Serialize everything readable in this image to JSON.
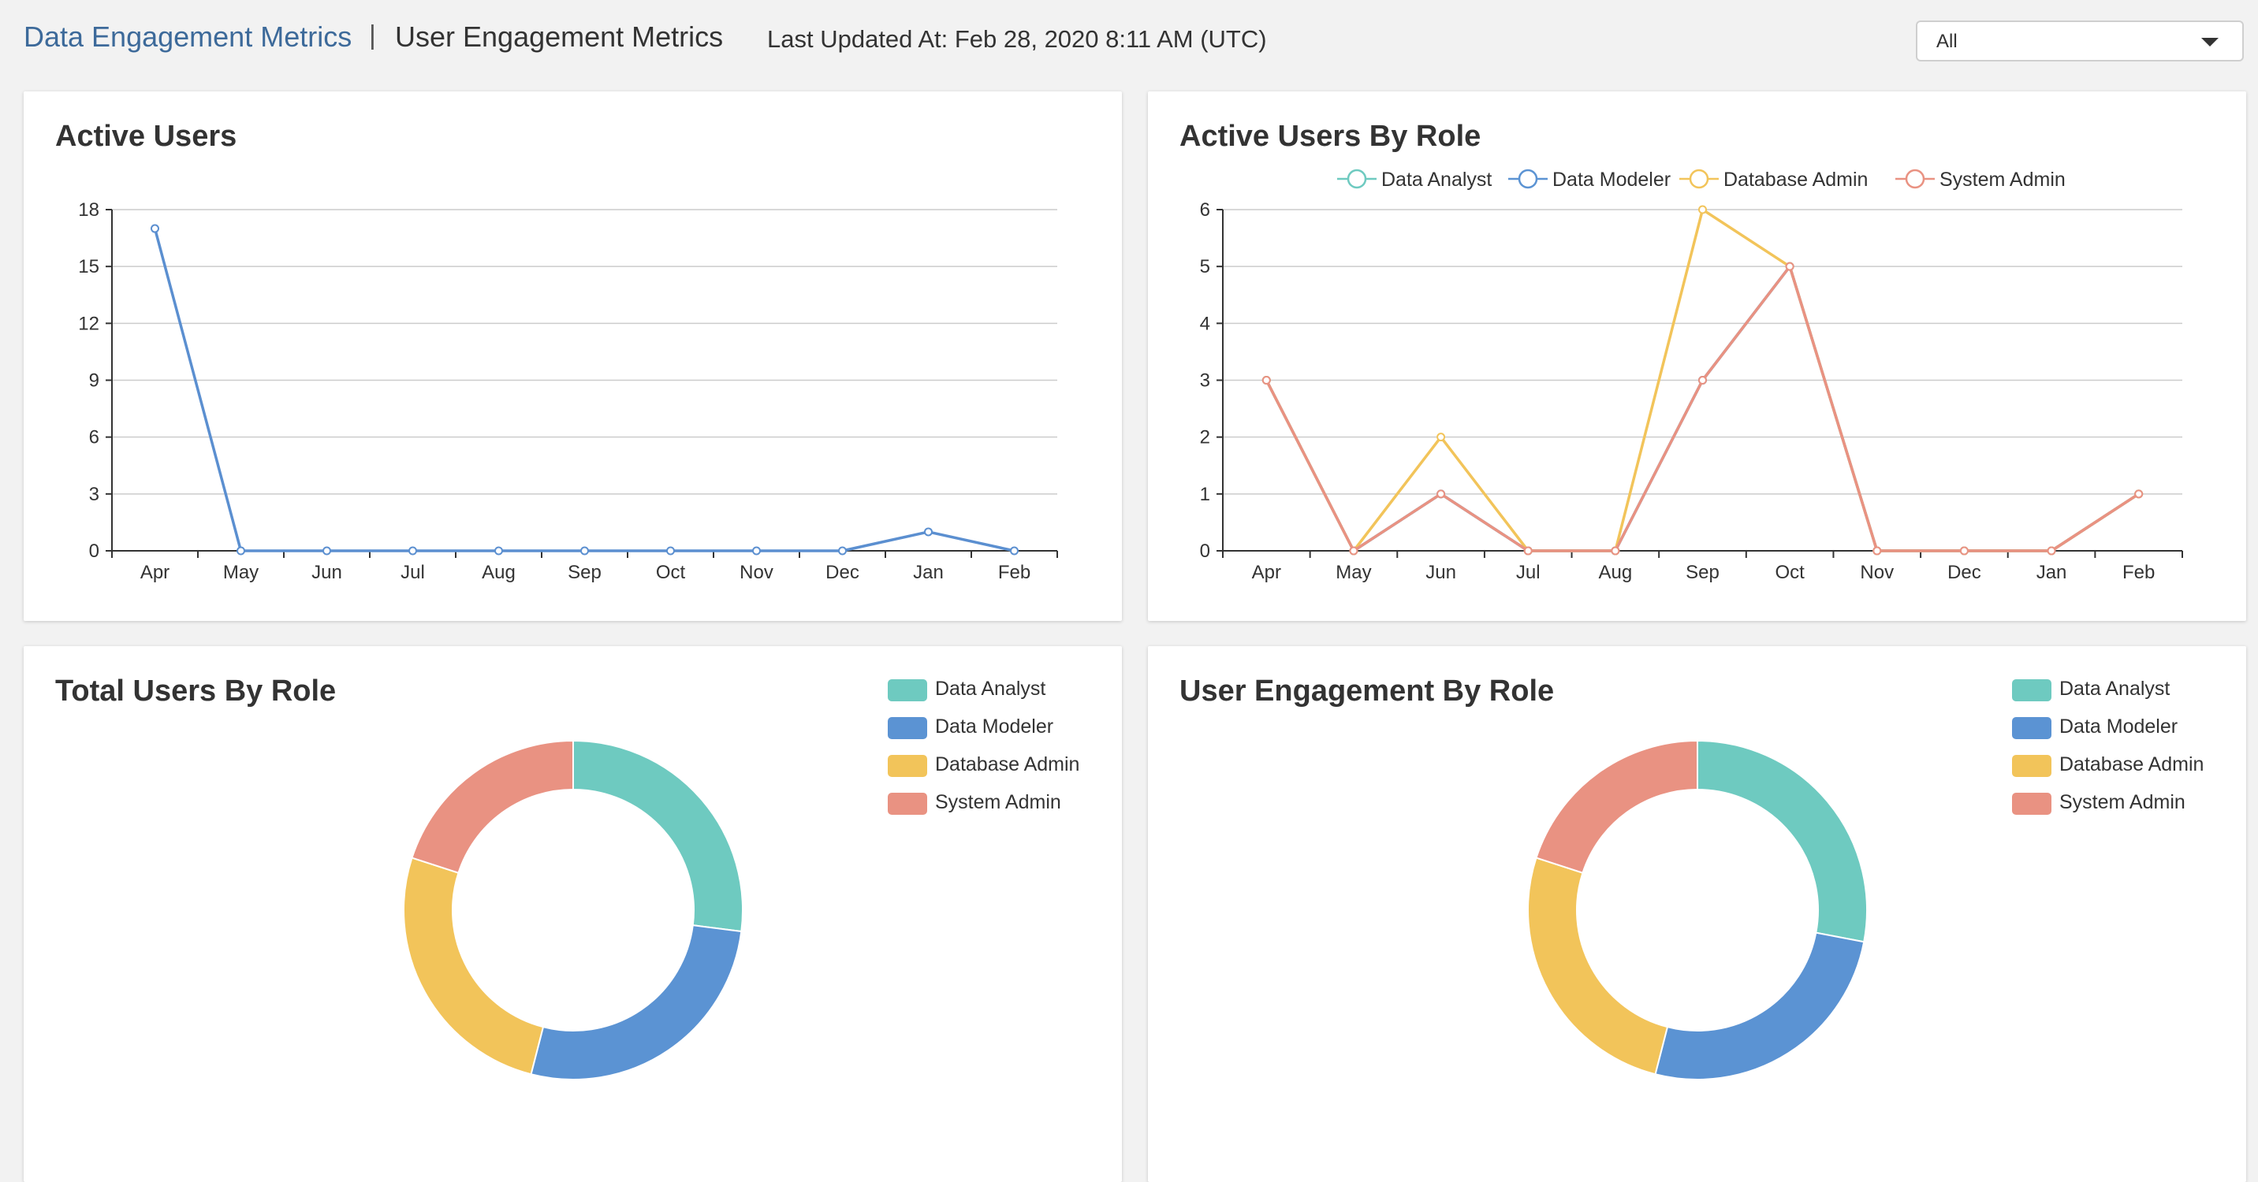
{
  "header": {
    "breadcrumb_link": "Data Engagement Metrics",
    "breadcrumb_sep": "|",
    "page_title": "User Engagement Metrics",
    "last_updated": "Last Updated At: Feb 28, 2020 8:11 AM (UTC)",
    "filter_value": "All"
  },
  "colors": {
    "data_analyst": "#6ecac0",
    "data_modeler": "#5b93d3",
    "database_admin": "#f2c45a",
    "system_admin": "#e99282",
    "active_line": "#5b8fd0"
  },
  "chart_data": [
    {
      "type": "line",
      "title": "Active Users",
      "categories": [
        "Apr",
        "May",
        "Jun",
        "Jul",
        "Aug",
        "Sep",
        "Oct",
        "Nov",
        "Dec",
        "Jan",
        "Feb"
      ],
      "series": [
        {
          "values": [
            17,
            0,
            0,
            0,
            0,
            0,
            0,
            0,
            0,
            1,
            0
          ]
        }
      ],
      "ylim": [
        0,
        18
      ],
      "yticks": [
        0,
        3,
        6,
        9,
        12,
        15,
        18
      ],
      "grid": true
    },
    {
      "type": "line",
      "title": "Active Users By Role",
      "categories": [
        "Apr",
        "May",
        "Jun",
        "Jul",
        "Aug",
        "Sep",
        "Oct",
        "Nov",
        "Dec",
        "Jan",
        "Feb"
      ],
      "series": [
        {
          "name": "Data Analyst",
          "values": [
            3,
            0,
            1,
            0,
            0,
            3,
            5,
            0,
            0,
            0,
            1
          ]
        },
        {
          "name": "Data Modeler",
          "values": [
            3,
            0,
            1,
            0,
            0,
            3,
            5,
            0,
            0,
            0,
            1
          ]
        },
        {
          "name": "Database Admin",
          "values": [
            3,
            0,
            2,
            0,
            0,
            6,
            5,
            0,
            0,
            0,
            1
          ]
        },
        {
          "name": "System Admin",
          "values": [
            3,
            0,
            1,
            0,
            0,
            3,
            5,
            0,
            0,
            0,
            1
          ]
        }
      ],
      "ylim": [
        0,
        6
      ],
      "yticks": [
        0,
        1,
        2,
        3,
        4,
        5,
        6
      ],
      "grid": true,
      "legend": "top-center"
    },
    {
      "type": "pie",
      "title": "Total Users By Role",
      "labels": [
        "Data Analyst",
        "Data Modeler",
        "Database Admin",
        "System Admin"
      ],
      "values": [
        27,
        27,
        26,
        20
      ],
      "legend": "top-right"
    },
    {
      "type": "pie",
      "title": "User Engagement By Role",
      "labels": [
        "Data Analyst",
        "Data Modeler",
        "Database Admin",
        "System Admin"
      ],
      "values": [
        28,
        26,
        26,
        20
      ],
      "legend": "top-right"
    }
  ]
}
